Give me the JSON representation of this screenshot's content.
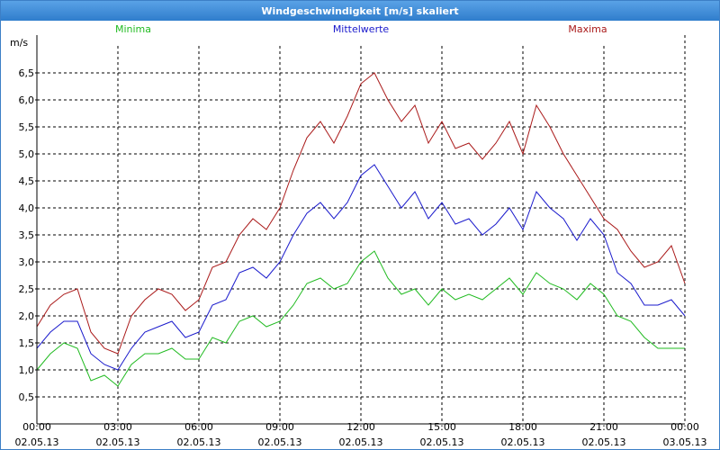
{
  "window": {
    "title": "Windgeschwindigkeit [m/s] skaliert"
  },
  "colors": {
    "minima": "#22bb22",
    "mittelwerte": "#1a1acc",
    "maxima": "#aa1a1a",
    "grid": "#000000",
    "titlebar": "#3d85d6"
  },
  "chart_data": {
    "type": "line",
    "title": "Windgeschwindigkeit [m/s] skaliert",
    "ylabel": "m/s",
    "xlabel": "",
    "ylim": [
      0,
      7
    ],
    "xlim": [
      0,
      24
    ],
    "grid": true,
    "legend_position": "top",
    "y_ticks": [
      "0,5",
      "1,0",
      "1,5",
      "2,0",
      "2,5",
      "3,0",
      "3,5",
      "4,0",
      "4,5",
      "5,0",
      "5,5",
      "6,0",
      "6,5"
    ],
    "x_ticks": [
      {
        "time": "00:00",
        "date": "02.05.13"
      },
      {
        "time": "03:00",
        "date": "02.05.13"
      },
      {
        "time": "06:00",
        "date": "02.05.13"
      },
      {
        "time": "09:00",
        "date": "02.05.13"
      },
      {
        "time": "12:00",
        "date": "02.05.13"
      },
      {
        "time": "15:00",
        "date": "02.05.13"
      },
      {
        "time": "18:00",
        "date": "02.05.13"
      },
      {
        "time": "21:00",
        "date": "02.05.13"
      },
      {
        "time": "00:00",
        "date": "03.05.13"
      }
    ],
    "x_hours": [
      0,
      0.5,
      1,
      1.5,
      2,
      2.5,
      3,
      3.5,
      4,
      4.5,
      5,
      5.5,
      6,
      6.5,
      7,
      7.5,
      8,
      8.5,
      9,
      9.5,
      10,
      10.5,
      11,
      11.5,
      12,
      12.5,
      13,
      13.5,
      14,
      14.5,
      15,
      15.5,
      16,
      16.5,
      17,
      17.5,
      18,
      18.5,
      19,
      19.5,
      20,
      20.5,
      21,
      21.5,
      22,
      22.5,
      23,
      23.5,
      24
    ],
    "series": [
      {
        "name": "Minima",
        "color": "#22bb22",
        "values": [
          1.0,
          1.3,
          1.5,
          1.4,
          0.8,
          0.9,
          0.7,
          1.1,
          1.3,
          1.3,
          1.4,
          1.2,
          1.2,
          1.6,
          1.5,
          1.9,
          2.0,
          1.8,
          1.9,
          2.2,
          2.6,
          2.7,
          2.5,
          2.6,
          3.0,
          3.2,
          2.7,
          2.4,
          2.5,
          2.2,
          2.5,
          2.3,
          2.4,
          2.3,
          2.5,
          2.7,
          2.4,
          2.8,
          2.6,
          2.5,
          2.3,
          2.6,
          2.4,
          2.0,
          1.9,
          1.6,
          1.4,
          1.4,
          1.4
        ]
      },
      {
        "name": "Mittelwerte",
        "color": "#1a1acc",
        "values": [
          1.4,
          1.7,
          1.9,
          1.9,
          1.3,
          1.1,
          1.0,
          1.4,
          1.7,
          1.8,
          1.9,
          1.6,
          1.7,
          2.2,
          2.3,
          2.8,
          2.9,
          2.7,
          3.0,
          3.5,
          3.9,
          4.1,
          3.8,
          4.1,
          4.6,
          4.8,
          4.4,
          4.0,
          4.3,
          3.8,
          4.1,
          3.7,
          3.8,
          3.5,
          3.7,
          4.0,
          3.6,
          4.3,
          4.0,
          3.8,
          3.4,
          3.8,
          3.5,
          2.8,
          2.6,
          2.2,
          2.2,
          2.3,
          2.0
        ]
      },
      {
        "name": "Maxima",
        "color": "#aa1a1a",
        "values": [
          1.8,
          2.2,
          2.4,
          2.5,
          1.7,
          1.4,
          1.3,
          2.0,
          2.3,
          2.5,
          2.4,
          2.1,
          2.3,
          2.9,
          3.0,
          3.5,
          3.8,
          3.6,
          4.0,
          4.7,
          5.3,
          5.6,
          5.2,
          5.7,
          6.3,
          6.5,
          6.0,
          5.6,
          5.9,
          5.2,
          5.6,
          5.1,
          5.2,
          4.9,
          5.2,
          5.6,
          5.0,
          5.9,
          5.5,
          5.0,
          4.6,
          4.2,
          3.8,
          3.6,
          3.2,
          2.9,
          3.0,
          3.3,
          2.6
        ]
      }
    ]
  }
}
